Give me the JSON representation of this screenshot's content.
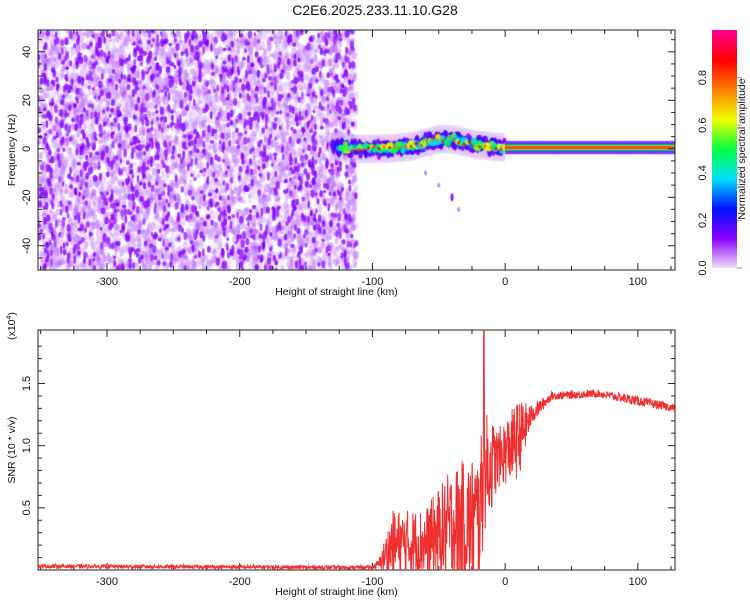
{
  "title": "C2E6.2025.233.11.10.G28",
  "chart_data": [
    {
      "type": "heatmap",
      "title": "C2E6.2025.233.11.10.G28",
      "xlabel": "Height of straight line (km)",
      "ylabel": "Frequency (Hz)",
      "xlim": [
        -352,
        128
      ],
      "ylim": [
        -50,
        49
      ],
      "xticks": [
        -300,
        -200,
        -100,
        0,
        100
      ],
      "xtick_labels": [
        "-300",
        "-200",
        "-100",
        "0",
        "100"
      ],
      "yticks": [
        -40,
        -20,
        0,
        20,
        40
      ],
      "ytick_labels": [
        "-40",
        "-20",
        "0",
        "20",
        "40"
      ],
      "noise_region_x": [
        -352,
        -112
      ],
      "signal_ridge": [
        [
          -130,
          1
        ],
        [
          -110,
          0
        ],
        [
          -90,
          0
        ],
        [
          -70,
          1
        ],
        [
          -50,
          4
        ],
        [
          -40,
          4
        ],
        [
          -25,
          2
        ],
        [
          -10,
          1
        ],
        [
          0,
          0.5
        ],
        [
          128,
          0.5
        ]
      ],
      "weak_feature": [
        [
          -60,
          -10
        ],
        [
          -50,
          -15
        ],
        [
          -40,
          -20
        ],
        [
          -35,
          -25
        ]
      ],
      "colorbar": {
        "label": "Normalized spectral amplitude",
        "range": [
          0,
          1
        ],
        "ticks": [
          0.0,
          0.2,
          0.4,
          0.6,
          0.8
        ],
        "tick_labels": [
          "0.0",
          "0.2",
          "0.4",
          "0.6",
          "0.8"
        ],
        "colors": [
          "#f0e6fa",
          "#8a00ff",
          "#0010ff",
          "#00e0ff",
          "#00ff40",
          "#f0ff00",
          "#ff8000",
          "#ff0000",
          "#ff0090"
        ]
      }
    },
    {
      "type": "line",
      "xlabel": "Height of straight line (km)",
      "ylabel": "SNR (10 * v/v)",
      "y_scale_label": "(x10",
      "y_scale_exp": "4",
      "y_scale_close": ")",
      "xlim": [
        -352,
        128
      ],
      "ylim": [
        0,
        1.93
      ],
      "xticks": [
        -300,
        -200,
        -100,
        0,
        100
      ],
      "xtick_labels": [
        "-300",
        "-200",
        "-100",
        "0",
        "100"
      ],
      "yticks": [
        0.5,
        1.0,
        1.5
      ],
      "ytick_labels": [
        "0.5",
        "1.0",
        "1.5"
      ],
      "color": "#f03030",
      "series": [
        {
          "name": "SNR",
          "envelope": [
            [
              -352,
              0.03,
              0.02
            ],
            [
              -100,
              0.02,
              0.02
            ],
            [
              -95,
              0.05,
              0.05
            ],
            [
              -85,
              0.2,
              0.35
            ],
            [
              -60,
              0.22,
              0.35
            ],
            [
              -40,
              0.35,
              0.6
            ],
            [
              -20,
              0.4,
              0.7
            ],
            [
              -15,
              0.8,
              0.6
            ],
            [
              -5,
              0.9,
              0.3
            ],
            [
              10,
              1.05,
              0.4
            ],
            [
              20,
              1.25,
              0.1
            ],
            [
              35,
              1.4,
              0.04
            ],
            [
              70,
              1.42,
              0.04
            ],
            [
              100,
              1.36,
              0.05
            ],
            [
              128,
              1.3,
              0.04
            ]
          ],
          "spike": [
            -16,
            1.93
          ]
        }
      ]
    }
  ]
}
